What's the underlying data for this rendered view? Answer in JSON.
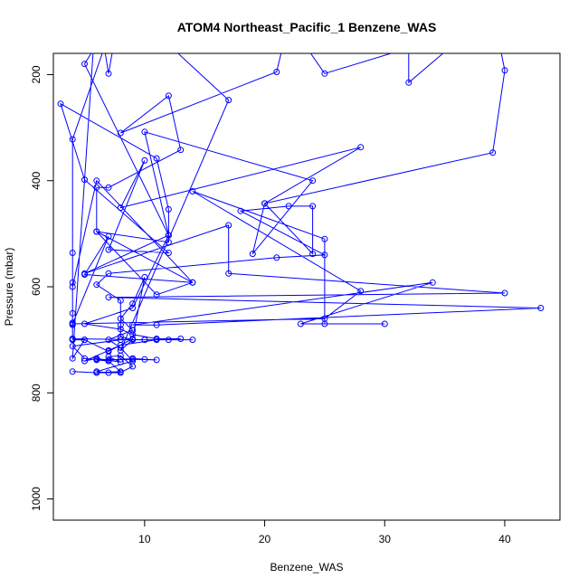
{
  "chart_data": {
    "type": "line",
    "title": "ATOM4 Northeast_Pacific_1 Benzene_WAS",
    "xlabel": "Benzene_WAS",
    "ylabel": "Pressure (mbar)",
    "xlim": [
      2.4,
      44.6
    ],
    "ylim": [
      1040,
      160
    ],
    "y_inverted": true,
    "xticks": [
      10,
      20,
      30,
      40
    ],
    "yticks": [
      200,
      400,
      600,
      800,
      1000
    ],
    "grid": false,
    "legend": "none",
    "color": "#0000ff",
    "series": [
      {
        "points": [
          [
            4,
            760
          ],
          [
            6,
            762
          ],
          [
            8,
            760
          ],
          [
            7,
            740
          ],
          [
            6,
            738
          ],
          [
            8,
            737
          ],
          [
            9,
            735
          ],
          [
            10,
            737
          ],
          [
            11,
            738
          ],
          [
            9,
            737
          ],
          [
            7,
            738
          ],
          [
            6,
            737
          ],
          [
            5,
            735
          ],
          [
            4,
            712
          ],
          [
            8,
            700
          ],
          [
            10,
            700
          ],
          [
            12,
            700
          ],
          [
            14,
            700
          ],
          [
            10,
            700
          ],
          [
            4,
            698
          ],
          [
            4,
            672
          ],
          [
            4,
            668
          ],
          [
            4,
            650
          ],
          [
            4,
            592
          ],
          [
            4,
            536
          ],
          [
            4,
            322
          ],
          [
            8,
            60
          ],
          [
            17,
            248
          ],
          [
            8,
            720
          ],
          [
            9,
            700
          ],
          [
            8,
            694
          ],
          [
            8,
            672
          ],
          [
            8,
            626
          ],
          [
            6,
            596
          ],
          [
            7,
            575
          ],
          [
            21,
            545
          ],
          [
            25,
            540
          ],
          [
            18,
            457
          ],
          [
            22,
            448
          ],
          [
            24,
            448
          ],
          [
            24,
            538
          ],
          [
            20,
            443
          ],
          [
            39,
            347
          ],
          [
            40,
            192
          ],
          [
            39,
            80
          ],
          [
            32,
            215
          ],
          [
            32,
            150
          ],
          [
            25,
            198
          ],
          [
            22,
            100
          ],
          [
            21,
            195
          ],
          [
            8,
            310
          ],
          [
            12,
            240
          ],
          [
            13,
            342
          ],
          [
            7,
            413
          ],
          [
            6,
            413
          ],
          [
            6,
            496
          ],
          [
            11,
            615
          ],
          [
            14,
            592
          ],
          [
            5,
            577
          ],
          [
            7,
            505
          ],
          [
            4,
            670
          ],
          [
            25,
            660
          ],
          [
            28,
            608
          ],
          [
            14,
            420
          ],
          [
            25,
            510
          ],
          [
            25,
            670
          ],
          [
            30,
            670
          ],
          [
            23,
            670
          ],
          [
            34,
            592
          ],
          [
            9,
            672
          ],
          [
            11,
            672
          ],
          [
            43,
            640
          ],
          [
            7,
            620
          ],
          [
            40,
            612
          ],
          [
            17,
            575
          ],
          [
            17,
            484
          ],
          [
            5,
            575
          ],
          [
            12,
            503
          ],
          [
            10,
            308
          ],
          [
            24,
            400
          ],
          [
            19,
            538
          ],
          [
            20,
            443
          ],
          [
            28,
            337
          ],
          [
            8,
            451
          ],
          [
            10,
            362
          ],
          [
            7,
            530
          ],
          [
            12,
            536
          ],
          [
            5,
            398
          ],
          [
            3,
            255
          ],
          [
            11,
            358
          ],
          [
            12,
            454
          ],
          [
            12,
            516
          ],
          [
            6,
            496
          ],
          [
            14,
            592
          ],
          [
            6,
            400
          ],
          [
            4,
            600
          ],
          [
            4,
            698
          ],
          [
            5,
            700
          ],
          [
            7,
            722
          ],
          [
            9,
            698
          ],
          [
            10,
            582
          ],
          [
            9,
            632
          ],
          [
            8,
            660
          ],
          [
            9,
            682
          ],
          [
            7,
            700
          ],
          [
            8,
            715
          ],
          [
            9,
            740
          ],
          [
            6,
            760
          ],
          [
            7,
            762
          ],
          [
            8,
            762
          ],
          [
            9,
            750
          ],
          [
            8,
            730
          ],
          [
            7,
            732
          ],
          [
            8,
            742
          ],
          [
            6,
            735
          ],
          [
            5,
            740
          ],
          [
            7,
            720
          ],
          [
            8,
            710
          ],
          [
            11,
            700
          ],
          [
            13,
            698
          ],
          [
            11,
            698
          ],
          [
            9,
            690
          ],
          [
            8,
            680
          ],
          [
            5,
            670
          ],
          [
            9,
            640
          ],
          [
            12,
            503
          ],
          [
            5,
            180
          ],
          [
            8,
            70
          ],
          [
            7,
            198
          ],
          [
            6,
            60
          ],
          [
            4,
            735
          ],
          [
            5,
            700
          ],
          [
            4,
            700
          ]
        ]
      }
    ]
  }
}
